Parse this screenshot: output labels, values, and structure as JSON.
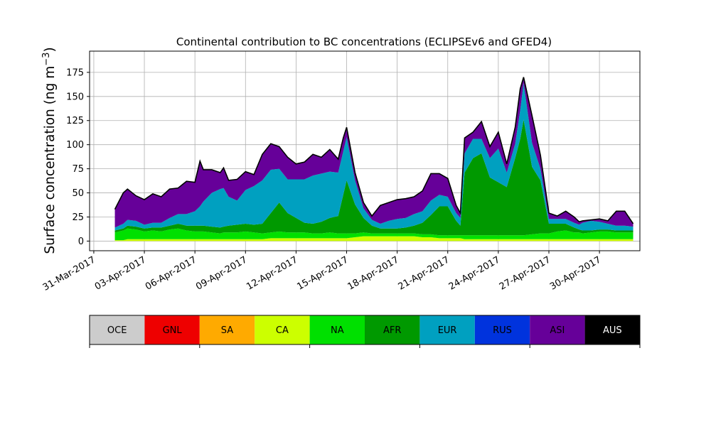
{
  "chart_data": {
    "type": "area",
    "title": "Continental contribution to BC concentrations (ECLIPSEv6 and GFED4)",
    "ylabel": "Surface concentration (ng m",
    "ylabel_sup": "−3",
    "ylabel_close": ")",
    "xlabel": "",
    "ylim": [
      -10,
      197
    ],
    "xlim": [
      -0.25,
      32.4
    ],
    "x_start_date": "2017-03-31",
    "grid": true,
    "x_ticks": [
      {
        "day": 0,
        "label": "31-Mar-2017"
      },
      {
        "day": 3,
        "label": "03-Apr-2017"
      },
      {
        "day": 6,
        "label": "06-Apr-2017"
      },
      {
        "day": 9,
        "label": "09-Apr-2017"
      },
      {
        "day": 12,
        "label": "12-Apr-2017"
      },
      {
        "day": 15,
        "label": "15-Apr-2017"
      },
      {
        "day": 18,
        "label": "18-Apr-2017"
      },
      {
        "day": 21,
        "label": "21-Apr-2017"
      },
      {
        "day": 24,
        "label": "24-Apr-2017"
      },
      {
        "day": 27,
        "label": "27-Apr-2017"
      },
      {
        "day": 30,
        "label": "30-Apr-2017"
      }
    ],
    "y_ticks": [
      0,
      25,
      50,
      75,
      100,
      125,
      150,
      175
    ],
    "x": [
      1.25,
      1.75,
      2,
      2.5,
      3,
      3.5,
      4,
      4.5,
      5,
      5.5,
      6,
      6.3,
      6.5,
      7,
      7.5,
      7.7,
      8,
      8.5,
      9,
      9.5,
      10,
      10.5,
      11,
      11.5,
      12,
      12.5,
      13,
      13.5,
      14,
      14.5,
      14.8,
      15,
      15.5,
      16,
      16.5,
      17,
      17.5,
      18,
      18.5,
      19,
      19.5,
      20,
      20.5,
      21,
      21.5,
      21.75,
      22,
      22.5,
      23,
      23.5,
      24,
      24.5,
      25,
      25.3,
      25.5,
      26,
      26.5,
      27,
      27.5,
      28,
      28.5,
      28.8,
      29,
      29.5,
      30,
      30.5,
      31,
      31.5,
      32
    ],
    "series": [
      {
        "name": "CA",
        "color": "#ccff00",
        "values": [
          1,
          1,
          2,
          2,
          2,
          2,
          2,
          2,
          2,
          2,
          2,
          2,
          2,
          2,
          2,
          2,
          2,
          2,
          2,
          2,
          2,
          3,
          3,
          3,
          3,
          3,
          3,
          3,
          3,
          3,
          3,
          3,
          4,
          5,
          5,
          5,
          5,
          5,
          5,
          5,
          4,
          4,
          3,
          3,
          3,
          3,
          2,
          2,
          2,
          2,
          2,
          2,
          2,
          2,
          2,
          2,
          2,
          2,
          2,
          2,
          2,
          2,
          2,
          2,
          2,
          2,
          2,
          2,
          2
        ]
      },
      {
        "name": "NA",
        "color": "#00e000",
        "values": [
          8,
          10,
          11,
          10,
          8,
          9,
          8,
          10,
          11,
          9,
          8,
          8,
          8,
          7,
          6,
          7,
          7,
          7,
          8,
          7,
          6,
          6,
          7,
          6,
          6,
          6,
          5,
          5,
          6,
          5,
          5,
          5,
          4,
          4,
          3,
          3,
          3,
          3,
          3,
          3,
          3,
          3,
          3,
          3,
          3,
          3,
          4,
          4,
          4,
          4,
          4,
          4,
          4,
          4,
          4,
          5,
          6,
          6,
          8,
          9,
          7,
          7,
          6,
          7,
          8,
          8,
          7,
          7,
          7
        ]
      },
      {
        "name": "AFR",
        "color": "#009900",
        "values": [
          2,
          2,
          3,
          3,
          3,
          3,
          4,
          4,
          5,
          5,
          6,
          6,
          6,
          6,
          6,
          6,
          7,
          8,
          8,
          8,
          10,
          20,
          30,
          20,
          15,
          10,
          10,
          12,
          15,
          18,
          40,
          55,
          30,
          15,
          8,
          5,
          5,
          5,
          6,
          8,
          12,
          20,
          30,
          30,
          15,
          10,
          65,
          80,
          85,
          60,
          55,
          50,
          80,
          100,
          120,
          70,
          55,
          10,
          8,
          7,
          5,
          3,
          3,
          2,
          2,
          2,
          2,
          2,
          2
        ]
      },
      {
        "name": "EUR",
        "color": "#00a0c0",
        "values": [
          3,
          5,
          6,
          6,
          4,
          5,
          5,
          8,
          10,
          12,
          15,
          20,
          25,
          35,
          40,
          40,
          30,
          25,
          35,
          40,
          45,
          45,
          35,
          35,
          40,
          45,
          50,
          50,
          48,
          45,
          45,
          45,
          25,
          10,
          6,
          5,
          8,
          10,
          10,
          12,
          12,
          15,
          12,
          10,
          8,
          8,
          20,
          20,
          15,
          20,
          35,
          15,
          15,
          30,
          38,
          25,
          12,
          5,
          5,
          5,
          5,
          5,
          8,
          10,
          8,
          6,
          5,
          5,
          4
        ]
      },
      {
        "name": "RUS",
        "color": "#0033dd",
        "values": [
          0,
          0,
          0,
          0,
          0,
          0,
          0,
          0,
          0,
          0,
          0,
          0,
          0,
          0,
          0,
          0,
          0,
          0,
          0,
          0,
          0,
          0,
          0,
          0,
          0,
          0,
          0,
          0,
          0,
          0,
          0,
          0,
          0,
          0,
          0,
          0,
          0,
          0,
          0,
          0,
          0,
          0,
          0,
          0,
          0,
          0,
          0,
          0,
          0,
          0,
          0,
          0,
          0,
          0,
          0,
          0,
          0,
          0,
          0,
          0,
          0,
          0,
          0,
          0,
          0,
          0,
          0,
          0,
          0
        ]
      },
      {
        "name": "ASI",
        "color": "#660099",
        "values": [
          19,
          32,
          32,
          26,
          26,
          30,
          27,
          30,
          27,
          34,
          30,
          47,
          33,
          24,
          17,
          21,
          17,
          22,
          19,
          12,
          27,
          27,
          23,
          23,
          16,
          18,
          22,
          17,
          23,
          14,
          14,
          10,
          8,
          6,
          4,
          19,
          19,
          20,
          20,
          18,
          21,
          28,
          22,
          19,
          8,
          5,
          16,
          7,
          18,
          12,
          17,
          9,
          17,
          22,
          6,
          28,
          14,
          6,
          3,
          8,
          6,
          3,
          2,
          1,
          3,
          3,
          15,
          15,
          3
        ]
      }
    ]
  },
  "legend": {
    "items": [
      {
        "name": "OCE",
        "color": "#cccccc"
      },
      {
        "name": "GNL",
        "color": "#ee0000"
      },
      {
        "name": "SA",
        "color": "#ffaa00"
      },
      {
        "name": "CA",
        "color": "#ccff00"
      },
      {
        "name": "NA",
        "color": "#00e000"
      },
      {
        "name": "AFR",
        "color": "#009900"
      },
      {
        "name": "EUR",
        "color": "#00a0c0"
      },
      {
        "name": "RUS",
        "color": "#0033dd"
      },
      {
        "name": "ASI",
        "color": "#660099"
      },
      {
        "name": "AUS",
        "color": "#000000"
      }
    ]
  }
}
